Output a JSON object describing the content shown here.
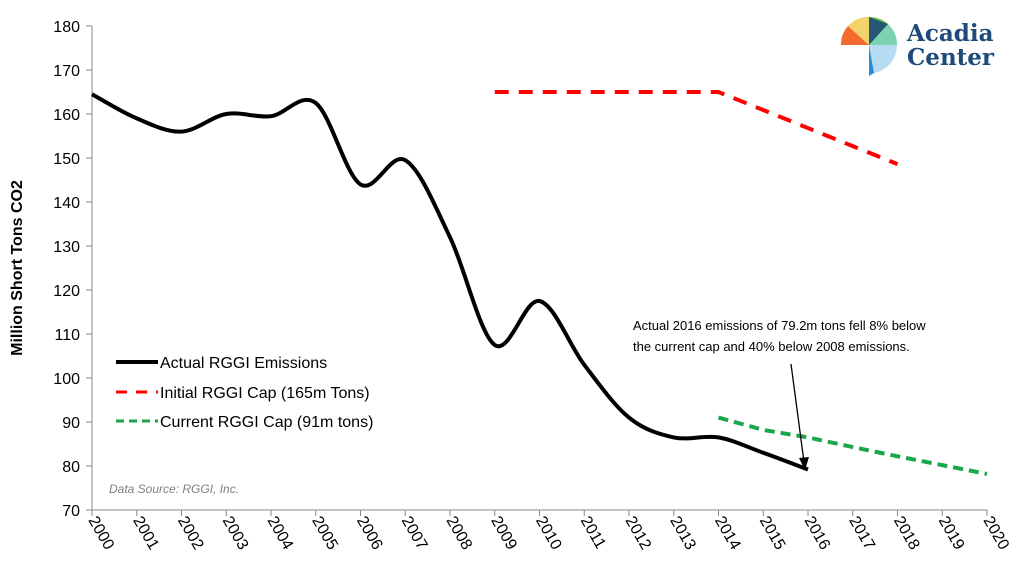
{
  "logo": {
    "line1": "Acadia",
    "line2": "Center"
  },
  "chart_data": {
    "type": "line",
    "title": "",
    "xlabel": "",
    "ylabel": "Million Short Tons CO2",
    "ylim": [
      70,
      180
    ],
    "yticks": [
      70,
      80,
      90,
      100,
      110,
      120,
      130,
      140,
      150,
      160,
      170,
      180
    ],
    "xlim": [
      2000,
      2020
    ],
    "xticks": [
      "2000",
      "2001",
      "2002",
      "2003",
      "2004",
      "2005",
      "2006",
      "2007",
      "2008",
      "2009",
      "2010",
      "2011",
      "2012",
      "2013",
      "2014",
      "2015",
      "2016",
      "2017",
      "2018",
      "2019",
      "2020"
    ],
    "grid": false,
    "legend_position": "left",
    "series": [
      {
        "name": "Actual RGGI Emissions",
        "color": "#000000",
        "style": "solid",
        "x": [
          2000,
          2001,
          2002,
          2003,
          2004,
          2005,
          2006,
          2007,
          2008,
          2009,
          2010,
          2011,
          2012,
          2013,
          2014,
          2015,
          2016
        ],
        "y": [
          164.5,
          159,
          156,
          160,
          159.5,
          162.5,
          144,
          149.5,
          132,
          107.5,
          117.5,
          103,
          91,
          86.5,
          86.5,
          83,
          79.2
        ]
      },
      {
        "name": "Initial RGGI Cap (165m Tons)",
        "color": "#ff0000",
        "style": "dashed",
        "x": [
          2009,
          2010,
          2011,
          2012,
          2013,
          2014,
          2015,
          2016,
          2017,
          2018
        ],
        "y": [
          165,
          165,
          165,
          165,
          165,
          165,
          160.9,
          156.8,
          152.7,
          148.6
        ]
      },
      {
        "name": "Current RGGI Cap (91m tons)",
        "color": "#1aa64a",
        "style": "dashed",
        "x": [
          2014,
          2015,
          2016,
          2017,
          2018,
          2019,
          2020
        ],
        "y": [
          91,
          88.2,
          86.5,
          84.3,
          82.2,
          80.2,
          78.2
        ]
      }
    ],
    "annotation": {
      "line1": "Actual 2016 emissions of 79.2m tons fell 8% below",
      "line2": "the current cap and 40% below 2008 emissions."
    },
    "source": "Data Source: RGGI, Inc."
  }
}
